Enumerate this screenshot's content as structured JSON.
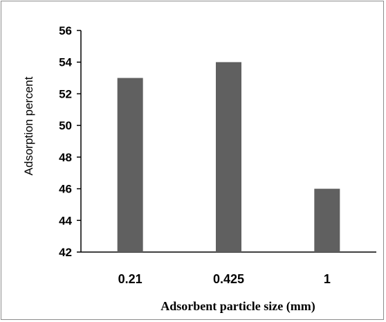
{
  "chart_data": {
    "type": "bar",
    "categories": [
      "0.21",
      "0.425",
      "1"
    ],
    "values": [
      53,
      54,
      46
    ],
    "xlabel": "Adsorbent particle size (mm)",
    "ylabel": "Adsorption percent",
    "ylim": [
      42,
      56
    ],
    "yticks": [
      "42",
      "44",
      "46",
      "48",
      "50",
      "52",
      "54",
      "56"
    ],
    "grid": false,
    "legend": "none",
    "bar_color": "#606060"
  }
}
